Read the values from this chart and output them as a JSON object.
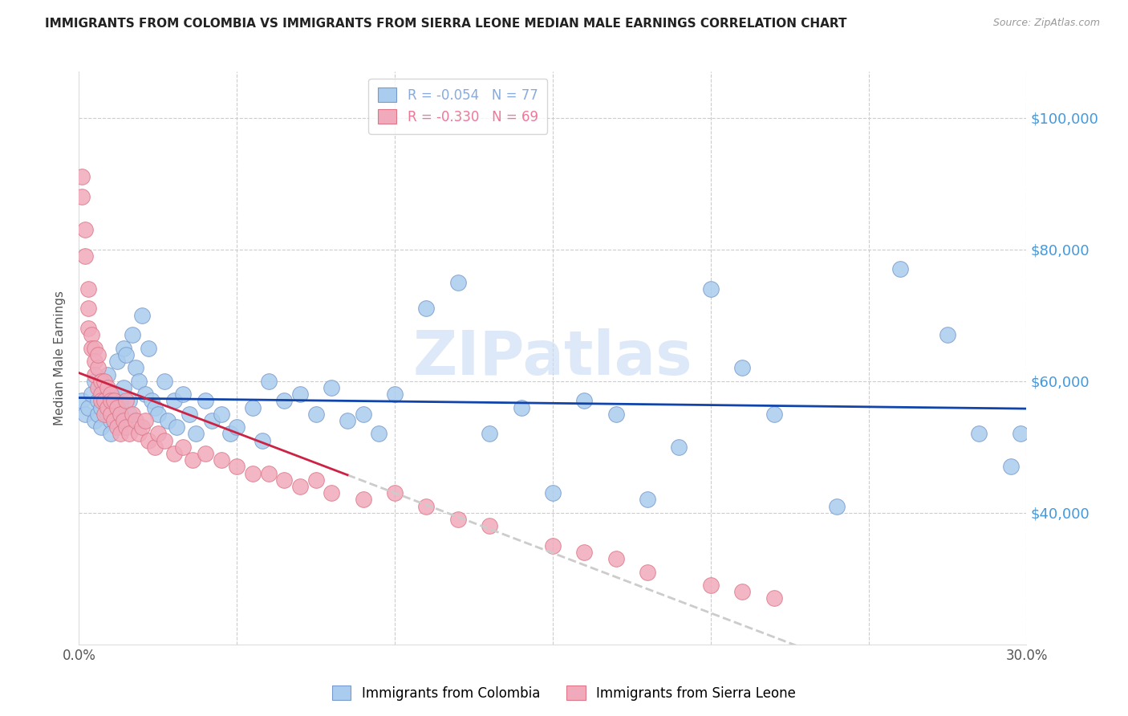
{
  "title": "IMMIGRANTS FROM COLOMBIA VS IMMIGRANTS FROM SIERRA LEONE MEDIAN MALE EARNINGS CORRELATION CHART",
  "source": "Source: ZipAtlas.com",
  "ylabel": "Median Male Earnings",
  "ytick_values": [
    40000,
    60000,
    80000,
    100000
  ],
  "right_axis_color": "#4499dd",
  "title_color": "#222222",
  "source_color": "#999999",
  "watermark_text": "ZIPatlas",
  "watermark_color": "#ccddf5",
  "colombia_color": "#aaccee",
  "sierraleone_color": "#f0aabb",
  "colombia_edge": "#7799cc",
  "sierraleone_edge": "#dd7788",
  "trend_colombia_color": "#1144aa",
  "trend_sierraleone_color": "#cc2244",
  "trend_ext_color": "#cccccc",
  "colombia_R": "-0.054",
  "colombia_N": "77",
  "sierraleone_R": "-0.330",
  "sierraleone_N": "69",
  "legend_color_colombia": "#88aadd",
  "legend_color_sierraleone": "#ee7799",
  "colombia_label": "Immigrants from Colombia",
  "sierraleone_label": "Immigrants from Sierra Leone",
  "xmin": 0.0,
  "xmax": 0.3,
  "ymin": 20000,
  "ymax": 107000,
  "colombia_x": [
    0.001,
    0.002,
    0.003,
    0.004,
    0.005,
    0.005,
    0.006,
    0.006,
    0.007,
    0.007,
    0.008,
    0.008,
    0.009,
    0.009,
    0.01,
    0.01,
    0.011,
    0.011,
    0.012,
    0.012,
    0.013,
    0.013,
    0.014,
    0.014,
    0.015,
    0.016,
    0.016,
    0.017,
    0.018,
    0.019,
    0.02,
    0.021,
    0.022,
    0.023,
    0.024,
    0.025,
    0.027,
    0.028,
    0.03,
    0.031,
    0.033,
    0.035,
    0.037,
    0.04,
    0.042,
    0.045,
    0.048,
    0.05,
    0.055,
    0.058,
    0.06,
    0.065,
    0.07,
    0.075,
    0.08,
    0.085,
    0.09,
    0.095,
    0.1,
    0.11,
    0.12,
    0.13,
    0.14,
    0.15,
    0.16,
    0.17,
    0.18,
    0.19,
    0.2,
    0.21,
    0.22,
    0.24,
    0.26,
    0.275,
    0.285,
    0.295,
    0.298
  ],
  "colombia_y": [
    57000,
    55000,
    56000,
    58000,
    54000,
    60000,
    55000,
    57000,
    53000,
    56000,
    57000,
    59000,
    55000,
    61000,
    54000,
    52000,
    56000,
    58000,
    54000,
    63000,
    57000,
    55000,
    65000,
    59000,
    64000,
    57000,
    55000,
    67000,
    62000,
    60000,
    70000,
    58000,
    65000,
    57000,
    56000,
    55000,
    60000,
    54000,
    57000,
    53000,
    58000,
    55000,
    52000,
    57000,
    54000,
    55000,
    52000,
    53000,
    56000,
    51000,
    60000,
    57000,
    58000,
    55000,
    59000,
    54000,
    55000,
    52000,
    58000,
    71000,
    75000,
    52000,
    56000,
    43000,
    57000,
    55000,
    42000,
    50000,
    74000,
    62000,
    55000,
    41000,
    77000,
    67000,
    52000,
    47000,
    52000
  ],
  "sierraleone_x": [
    0.001,
    0.001,
    0.002,
    0.002,
    0.003,
    0.003,
    0.003,
    0.004,
    0.004,
    0.005,
    0.005,
    0.005,
    0.006,
    0.006,
    0.006,
    0.007,
    0.007,
    0.007,
    0.008,
    0.008,
    0.008,
    0.009,
    0.009,
    0.01,
    0.01,
    0.01,
    0.011,
    0.011,
    0.012,
    0.012,
    0.013,
    0.013,
    0.014,
    0.015,
    0.015,
    0.016,
    0.017,
    0.018,
    0.019,
    0.02,
    0.021,
    0.022,
    0.024,
    0.025,
    0.027,
    0.03,
    0.033,
    0.036,
    0.04,
    0.045,
    0.05,
    0.055,
    0.06,
    0.065,
    0.07,
    0.075,
    0.08,
    0.09,
    0.1,
    0.11,
    0.12,
    0.13,
    0.15,
    0.16,
    0.17,
    0.18,
    0.2,
    0.21,
    0.22
  ],
  "sierraleone_y": [
    91000,
    88000,
    83000,
    79000,
    74000,
    71000,
    68000,
    67000,
    65000,
    65000,
    63000,
    61000,
    62000,
    59000,
    64000,
    60000,
    58000,
    57000,
    60000,
    57000,
    55000,
    59000,
    56000,
    58000,
    55000,
    57000,
    57000,
    54000,
    56000,
    53000,
    55000,
    52000,
    54000,
    57000,
    53000,
    52000,
    55000,
    54000,
    52000,
    53000,
    54000,
    51000,
    50000,
    52000,
    51000,
    49000,
    50000,
    48000,
    49000,
    48000,
    47000,
    46000,
    46000,
    45000,
    44000,
    45000,
    43000,
    42000,
    43000,
    41000,
    39000,
    38000,
    35000,
    34000,
    33000,
    31000,
    29000,
    28000,
    27000
  ],
  "sl_trend_end_x": 0.085
}
